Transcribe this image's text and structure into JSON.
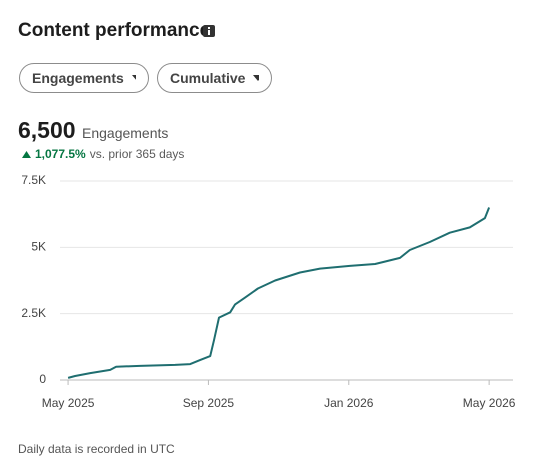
{
  "header": {
    "title": "Content performance"
  },
  "filters": [
    "Engagements",
    "Cumulative"
  ],
  "summary": {
    "value": "6,500",
    "label": "Engagements",
    "change": "1,077.5%",
    "comparison": "vs. prior 365 days"
  },
  "footnote": "Daily data is recorded in UTC",
  "chart_data": {
    "type": "line",
    "x": [
      0,
      0.2,
      0.63,
      1.2,
      1.37,
      2.05,
      3.05,
      3.48,
      3.76,
      4.05,
      4.16,
      4.3,
      4.62,
      4.76,
      5.04,
      5.41,
      5.9,
      6.61,
      7.18,
      8.03,
      8.75,
      9.46,
      9.74,
      10.31,
      10.88,
      11.45,
      11.88,
      12.0
    ],
    "series": [
      {
        "color": "#1f6e70",
        "values": [
          80,
          150,
          260,
          380,
          500,
          530,
          570,
          600,
          750,
          900,
          1500,
          2350,
          2550,
          2850,
          3100,
          3450,
          3750,
          4050,
          4200,
          4300,
          4370,
          4600,
          4900,
          5200,
          5550,
          5750,
          6100,
          6500
        ]
      }
    ],
    "xlim": [
      -0.23,
      12.68
    ],
    "xticks": [
      {
        "value": 0,
        "label": "May 2025"
      },
      {
        "value": 4,
        "label": "Sep 2025"
      },
      {
        "value": 8,
        "label": "Jan 2026"
      },
      {
        "value": 12,
        "label": "May 2026"
      }
    ],
    "ylim": [
      0,
      7500
    ],
    "yticks": [
      0,
      {
        "value": 2500,
        "label": "2.5K"
      },
      {
        "value": 5000,
        "label": "5K"
      },
      {
        "value": 7500,
        "label": "7.5K"
      }
    ],
    "grid": true
  }
}
